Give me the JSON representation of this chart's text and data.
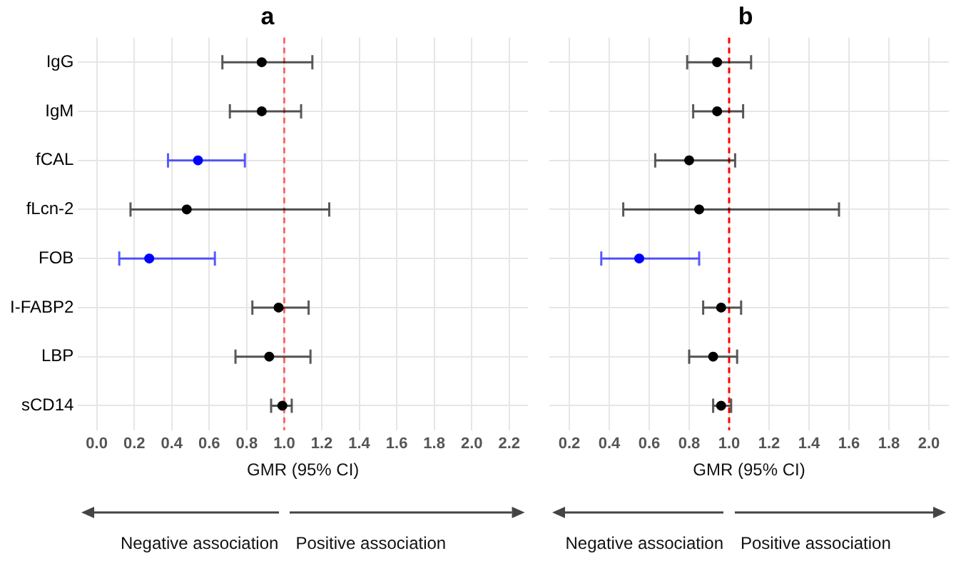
{
  "chart_data": [
    {
      "type": "scatter",
      "orientation": "horizontal",
      "title": "a",
      "xlabel": "GMR (95% CI)",
      "categories": [
        "IgG",
        "IgM",
        "fCAL",
        "fLcn-2",
        "FOB",
        "I-FABP2",
        "LBP",
        "sCD14"
      ],
      "values": [
        0.88,
        0.88,
        0.54,
        0.48,
        0.28,
        0.97,
        0.92,
        0.99
      ],
      "errors": [
        [
          0.67,
          1.15
        ],
        [
          0.71,
          1.09
        ],
        [
          0.38,
          0.79
        ],
        [
          0.18,
          1.24
        ],
        [
          0.12,
          0.63
        ],
        [
          0.83,
          1.13
        ],
        [
          0.74,
          1.14
        ],
        [
          0.93,
          1.04
        ]
      ],
      "colors": [
        "#000000",
        "#000000",
        "#0000ff",
        "#000000",
        "#0000ff",
        "#000000",
        "#000000",
        "#000000"
      ],
      "xlim": [
        -0.1,
        2.3
      ],
      "xticks": [
        {
          "value": 0,
          "label": "0.0"
        },
        0.2,
        0.4,
        0.6,
        0.8,
        {
          "value": 1,
          "label": "1.0"
        },
        1.2,
        1.4,
        1.6,
        1.8,
        {
          "value": 2,
          "label": "2.0"
        },
        2.2
      ],
      "ref_lines": [
        {
          "axis": "x",
          "value": 1,
          "color": "#ff6666",
          "line_style": "dashed"
        }
      ],
      "annotations": [
        "Negative association",
        "Positive association"
      ],
      "grid": true,
      "marker": "circle"
    },
    {
      "type": "scatter",
      "orientation": "horizontal",
      "title": "b",
      "xlabel": "GMR (95% CI)",
      "categories": [
        null,
        null,
        null,
        null,
        null,
        null,
        null,
        null
      ],
      "values": [
        0.94,
        0.94,
        0.8,
        0.85,
        0.55,
        0.96,
        0.92,
        0.96
      ],
      "errors": [
        [
          0.79,
          1.11
        ],
        [
          0.82,
          1.07
        ],
        [
          0.63,
          1.03
        ],
        [
          0.47,
          1.55
        ],
        [
          0.36,
          0.85
        ],
        [
          0.87,
          1.06
        ],
        [
          0.8,
          1.04
        ],
        [
          0.92,
          1.01
        ]
      ],
      "colors": [
        "#000000",
        "#000000",
        "#000000",
        "#000000",
        "#0000ff",
        "#000000",
        "#000000",
        "#000000"
      ],
      "xlim": [
        0.1,
        2.1
      ],
      "xticks": [
        0.2,
        0.4,
        0.6,
        0.8,
        {
          "value": 1,
          "label": "1.0"
        },
        1.2,
        1.4,
        1.6,
        1.8,
        {
          "value": 2,
          "label": "2.0"
        }
      ],
      "ref_lines": [
        {
          "axis": "x",
          "value": 1,
          "color": "#ff0000",
          "line_style": "dashed"
        }
      ],
      "annotations": [
        "Negative association",
        "Positive association"
      ],
      "grid": true,
      "marker": "circle"
    }
  ]
}
